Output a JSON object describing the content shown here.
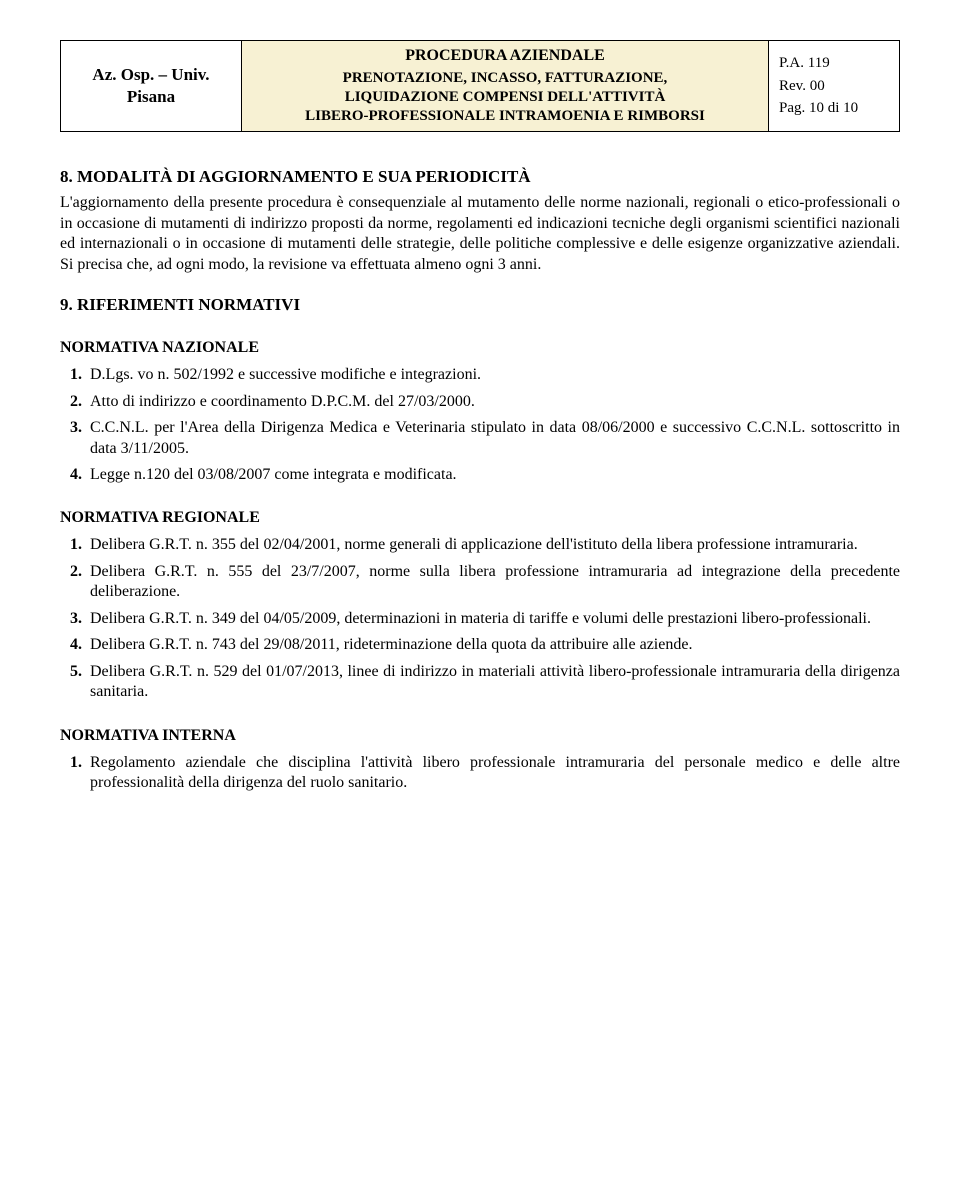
{
  "header": {
    "org1": "Az. Osp. – Univ.",
    "org2": "Pisana",
    "title_line1": "PROCEDURA AZIENDALE",
    "title_line2": "PRENOTAZIONE, INCASSO, FATTURAZIONE,",
    "title_line3": "LIQUIDAZIONE COMPENSI DELL'ATTIVITÀ",
    "title_line4": "LIBERO-PROFESSIONALE INTRAMOENIA E RIMBORSI",
    "code": "P.A. 119",
    "rev": "Rev. 00",
    "page": "Pag. 10 di 10"
  },
  "section8": {
    "title": "8. MODALITÀ DI AGGIORNAMENTO E SUA PERIODICITÀ",
    "text": "L'aggiornamento della presente procedura è consequenziale al mutamento delle norme nazionali, regionali o etico-professionali o in occasione di mutamenti di indirizzo proposti da norme, regolamenti ed indicazioni tecniche degli organismi scientifici nazionali ed internazionali o in occasione di mutamenti delle strategie, delle politiche complessive e delle esigenze organizzative aziendali. Si precisa che, ad ogni modo, la revisione va effettuata almeno ogni 3 anni."
  },
  "section9": {
    "title": "9. RIFERIMENTI NORMATIVI",
    "nazionale_title": "NORMATIVA NAZIONALE",
    "nazionale_items": [
      "D.Lgs. vo n. 502/1992 e successive modifiche e integrazioni.",
      "Atto di indirizzo e coordinamento D.P.C.M. del 27/03/2000.",
      "C.C.N.L. per l'Area della Dirigenza Medica e Veterinaria stipulato in data 08/06/2000 e  successivo C.C.N.L. sottoscritto in data 3/11/2005.",
      "Legge n.120 del 03/08/2007 come integrata e modificata."
    ],
    "regionale_title": "NORMATIVA REGIONALE",
    "regionale_items": [
      "Delibera G.R.T. n. 355 del 02/04/2001, norme generali di applicazione dell'istituto della libera professione intramuraria.",
      "Delibera G.R.T. n. 555 del 23/7/2007, norme sulla libera professione intramuraria ad integrazione della precedente deliberazione.",
      "Delibera G.R.T. n. 349 del 04/05/2009, determinazioni in materia di tariffe e volumi delle prestazioni libero-professionali.",
      "Delibera G.R.T. n. 743 del 29/08/2011, rideterminazione della quota da attribuire alle aziende.",
      "Delibera G.R.T. n. 529 del 01/07/2013, linee di indirizzo in materiali attività libero-professionale intramuraria della dirigenza sanitaria."
    ],
    "interna_title": "NORMATIVA INTERNA",
    "interna_items": [
      "Regolamento aziendale che disciplina l'attività libero professionale intramuraria del personale medico e delle altre professionalità della dirigenza del ruolo sanitario."
    ]
  }
}
